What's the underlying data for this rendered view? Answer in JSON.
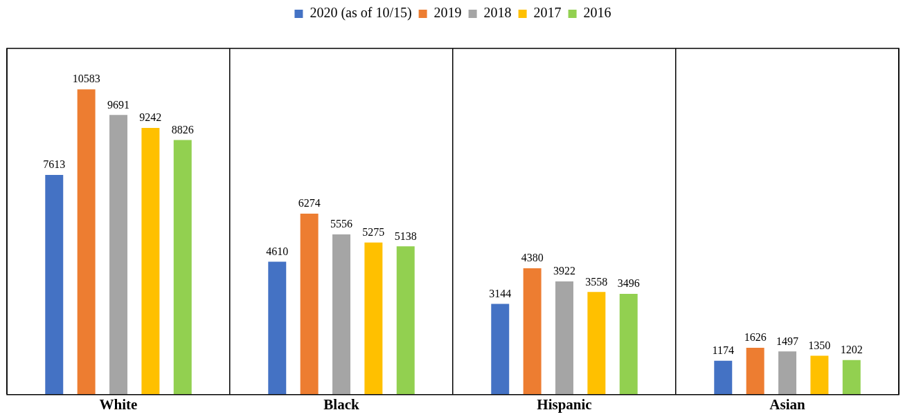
{
  "chart_data": {
    "type": "bar",
    "categories": [
      "White",
      "Black",
      "Hispanic",
      "Asian"
    ],
    "series": [
      {
        "name": "2020 (as of 10/15)",
        "color": "#4472c4",
        "values": [
          7613,
          4610,
          3144,
          1174
        ]
      },
      {
        "name": "2019",
        "color": "#ed7d31",
        "values": [
          10583,
          6274,
          4380,
          1626
        ]
      },
      {
        "name": "2018",
        "color": "#a5a5a5",
        "values": [
          9691,
          5556,
          3922,
          1497
        ]
      },
      {
        "name": "2017",
        "color": "#ffc000",
        "values": [
          9242,
          5275,
          3558,
          1350
        ]
      },
      {
        "name": "2016",
        "color": "#92d050",
        "values": [
          8826,
          5138,
          3496,
          1202
        ]
      }
    ],
    "data_labels": true,
    "legend": "top",
    "grid": "x"
  }
}
